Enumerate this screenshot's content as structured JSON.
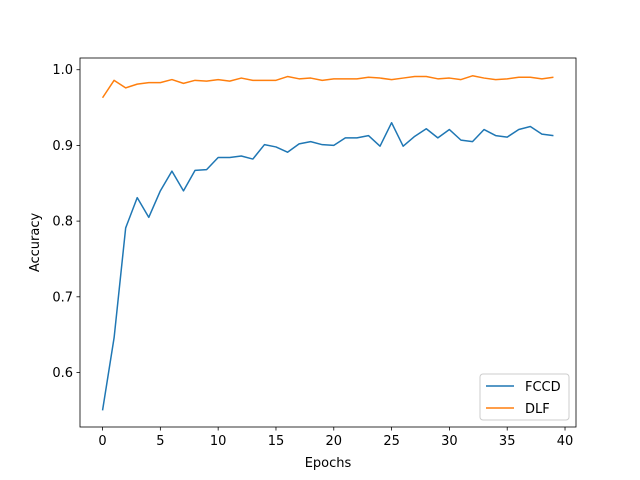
{
  "chart_data": {
    "type": "line",
    "title": "",
    "xlabel": "Epochs",
    "ylabel": "Accuracy",
    "xlim": [
      -1.95,
      40.95
    ],
    "ylim": [
      0.528,
      1.0155
    ],
    "xticks": [
      0,
      5,
      10,
      15,
      20,
      25,
      30,
      35,
      40
    ],
    "xtick_labels": [
      "0",
      "5",
      "10",
      "15",
      "20",
      "25",
      "30",
      "35",
      "40"
    ],
    "yticks": [
      0.6,
      0.7,
      0.8,
      0.9,
      1.0
    ],
    "ytick_labels": [
      "0.6",
      "0.7",
      "0.8",
      "0.9",
      "1.0"
    ],
    "grid": false,
    "legend_position": "lower-right",
    "x": [
      0,
      1,
      2,
      3,
      4,
      5,
      6,
      7,
      8,
      9,
      10,
      11,
      12,
      13,
      14,
      15,
      16,
      17,
      18,
      19,
      20,
      21,
      22,
      23,
      24,
      25,
      26,
      27,
      28,
      29,
      30,
      31,
      32,
      33,
      34,
      35,
      36,
      37,
      38,
      39
    ],
    "series": [
      {
        "name": "FCCD",
        "color": "#1f77b4",
        "values": [
          0.55,
          0.646,
          0.791,
          0.831,
          0.805,
          0.84,
          0.866,
          0.84,
          0.867,
          0.868,
          0.884,
          0.884,
          0.886,
          0.882,
          0.901,
          0.898,
          0.891,
          0.902,
          0.905,
          0.901,
          0.9,
          0.91,
          0.91,
          0.913,
          0.899,
          0.93,
          0.899,
          0.912,
          0.922,
          0.91,
          0.921,
          0.907,
          0.905,
          0.921,
          0.913,
          0.911,
          0.921,
          0.925,
          0.915,
          0.913
        ]
      },
      {
        "name": "DLF",
        "color": "#ff7f0e",
        "values": [
          0.963,
          0.986,
          0.976,
          0.981,
          0.983,
          0.983,
          0.987,
          0.982,
          0.986,
          0.985,
          0.987,
          0.985,
          0.989,
          0.986,
          0.986,
          0.986,
          0.991,
          0.988,
          0.989,
          0.986,
          0.988,
          0.988,
          0.988,
          0.99,
          0.989,
          0.987,
          0.989,
          0.991,
          0.991,
          0.988,
          0.989,
          0.987,
          0.992,
          0.989,
          0.987,
          0.988,
          0.99,
          0.99,
          0.988,
          0.99
        ]
      }
    ]
  }
}
